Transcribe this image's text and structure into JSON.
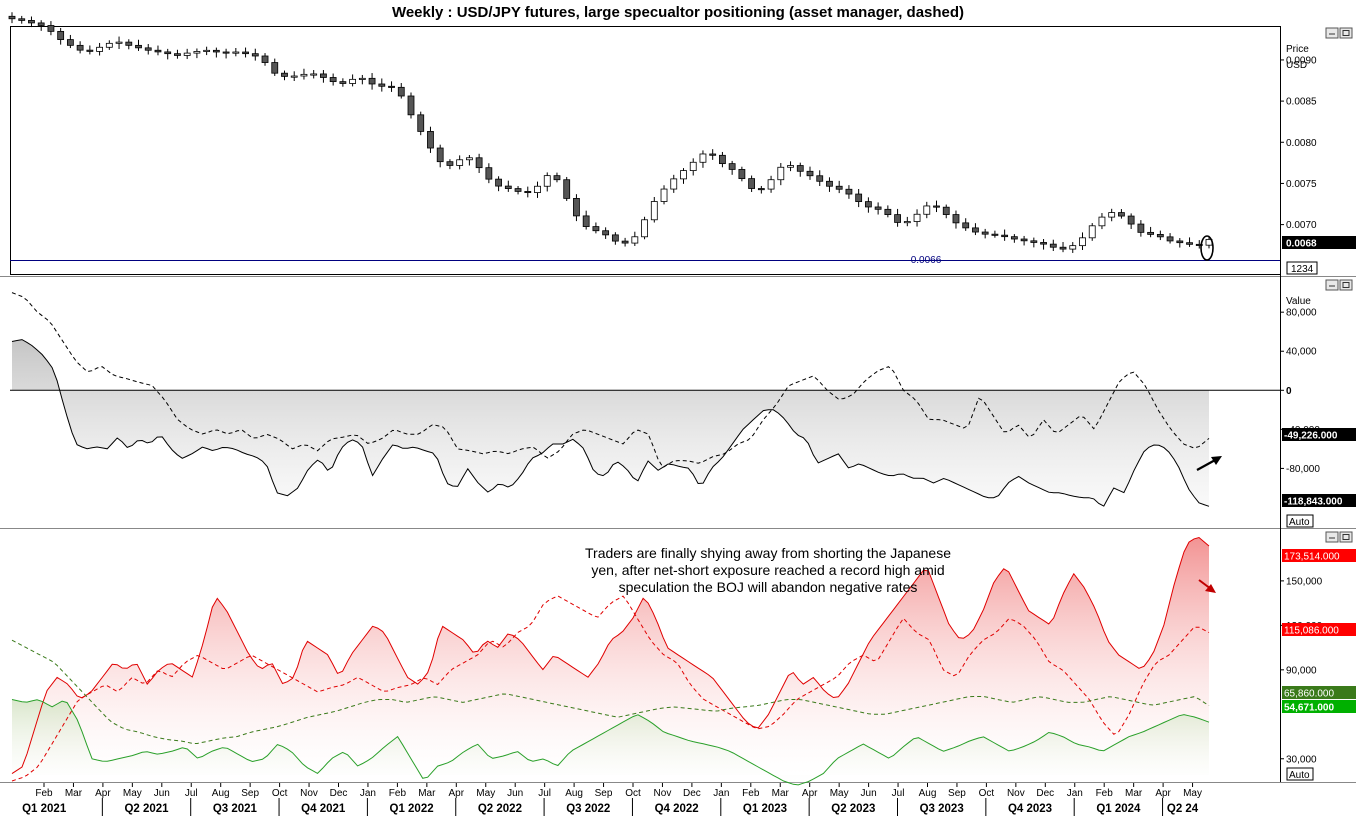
{
  "title": "Weekly : USD/JPY futures, large specualtor positioning (asset manager, dashed)",
  "panes": {
    "price": {
      "axis_title_1": "Price",
      "axis_title_2": "USD",
      "ticks": [
        "0.0090",
        "0.0085",
        "0.0080",
        "0.0075",
        "0.0070"
      ],
      "last_label": "0.0068",
      "hline_label": "0.0066",
      "sub_label": "1234"
    },
    "net": {
      "axis_title": "Value",
      "ticks": [
        "80,000",
        "40,000",
        "0",
        "-40,000",
        "-80,000"
      ],
      "label_dashed": "-49,226.000",
      "label_solid": "-118,843.000",
      "auto": "Auto"
    },
    "gross": {
      "ticks": [
        "150,000",
        "120,000",
        "90,000",
        "30,000"
      ],
      "label_short_lev": "173,514.000",
      "label_short_am": "115,086.000",
      "label_long_am": "65,860.000",
      "label_long_lev": "54,671.000",
      "auto": "Auto",
      "annotation": [
        "Traders are finally shying away from shorting the Japanese",
        "yen, after net-short exposure reached a record high amid",
        "speculation the BOJ will abandon negative rates"
      ]
    }
  },
  "x_axis": {
    "months": [
      "Feb",
      "Mar",
      "Apr",
      "May",
      "Jun",
      "Jul",
      "Aug",
      "Sep",
      "Oct",
      "Nov",
      "Dec",
      "Jan",
      "Feb",
      "Mar",
      "Apr",
      "May",
      "Jun",
      "Jul",
      "Aug",
      "Sep",
      "Oct",
      "Nov",
      "Dec",
      "Jan",
      "Feb",
      "Mar",
      "Apr",
      "May",
      "Jun",
      "Jul",
      "Aug",
      "Sep",
      "Oct",
      "Nov",
      "Dec",
      "Jan",
      "Feb",
      "Mar",
      "Apr",
      "May"
    ],
    "quarters": [
      "Q1 2021",
      "Q2 2021",
      "Q3 2021",
      "Q4 2021",
      "Q1 2022",
      "Q2 2022",
      "Q3 2022",
      "Q4 2022",
      "Q1 2023",
      "Q2 2023",
      "Q3 2023",
      "Q4 2023",
      "Q1 2024",
      "Q2 24"
    ]
  },
  "colors": {
    "up": "#ffffff",
    "down": "#555555",
    "net_fill": "#d9d9d9",
    "short_fill": "#f4a8a8",
    "long_fill": "#e4ecd8",
    "red_label": "#ff0000",
    "green_label": "#00b000",
    "dark_green_label": "#3a7a1a",
    "hline": "#00007f"
  },
  "chart_data": [
    {
      "type": "candlestick",
      "name": "USD/JPY futures (weekly)",
      "x_range": [
        "2021-01",
        "2024-03"
      ],
      "ylim": [
        0.0064,
        0.0094
      ],
      "close_path": [
        0.0095,
        0.00948,
        0.00945,
        0.00942,
        0.00935,
        0.00925,
        0.00918,
        0.00912,
        0.0091,
        0.00915,
        0.0092,
        0.00922,
        0.00918,
        0.00915,
        0.00912,
        0.0091,
        0.00908,
        0.00905,
        0.00908,
        0.0091,
        0.00912,
        0.0091,
        0.00908,
        0.0091,
        0.00908,
        0.00906,
        0.009,
        0.00885,
        0.0088,
        0.0088,
        0.00882,
        0.00884,
        0.0088,
        0.00875,
        0.0087,
        0.00875,
        0.0088,
        0.00872,
        0.00868,
        0.00868,
        0.00864,
        0.0084,
        0.0082,
        0.008,
        0.0078,
        0.0077,
        0.00775,
        0.00785,
        0.00775,
        0.0076,
        0.00748,
        0.00745,
        0.00742,
        0.00738,
        0.0074,
        0.00755,
        0.00765,
        0.00742,
        0.0072,
        0.007,
        0.00695,
        0.0069,
        0.00685,
        0.00675,
        0.0068,
        0.0069,
        0.0072,
        0.00735,
        0.0075,
        0.0076,
        0.0077,
        0.0078,
        0.0079,
        0.0078,
        0.0077,
        0.00765,
        0.0075,
        0.0074,
        0.00745,
        0.0076,
        0.00775,
        0.0077,
        0.00762,
        0.00758,
        0.0075,
        0.00745,
        0.00742,
        0.00735,
        0.00725,
        0.0072,
        0.00718,
        0.0071,
        0.007,
        0.00705,
        0.00715,
        0.00725,
        0.0072,
        0.0071,
        0.007,
        0.00695,
        0.0069,
        0.00688,
        0.00687,
        0.00685,
        0.00682,
        0.0068,
        0.00678,
        0.00676,
        0.00672,
        0.0067,
        0.00675,
        0.00685,
        0.007,
        0.0071,
        0.00715,
        0.0071,
        0.007,
        0.0069,
        0.00688,
        0.00685,
        0.0068,
        0.00678,
        0.00676,
        0.00675,
        0.00682
      ],
      "hline": 0.0066,
      "last": 0.0068
    },
    {
      "type": "line",
      "name": "Net positioning",
      "ylim": [
        -140000,
        115000
      ],
      "series": [
        {
          "name": "Leveraged funds net",
          "style": "solid",
          "last": -118843,
          "values": [
            50000,
            52000,
            45000,
            35000,
            20000,
            -20000,
            -55000,
            -60000,
            -58000,
            -60000,
            -48000,
            -60000,
            -50000,
            -55000,
            -45000,
            -60000,
            -70000,
            -65000,
            -58000,
            -62000,
            -58000,
            -60000,
            -65000,
            -68000,
            -75000,
            -105000,
            -108000,
            -100000,
            -80000,
            -70000,
            -85000,
            -60000,
            -50000,
            -55000,
            -88000,
            -70000,
            -55000,
            -60000,
            -58000,
            -62000,
            -65000,
            -95000,
            -100000,
            -80000,
            -95000,
            -105000,
            -95000,
            -100000,
            -88000,
            -70000,
            -65000,
            -55000,
            -55000,
            -50000,
            -60000,
            -85000,
            -88000,
            -72000,
            -80000,
            -95000,
            -72000,
            -82000,
            -75000,
            -78000,
            -80000,
            -100000,
            -80000,
            -70000,
            -55000,
            -40000,
            -30000,
            -20000,
            -20000,
            -30000,
            -45000,
            -50000,
            -75000,
            -70000,
            -65000,
            -80000,
            -75000,
            -80000,
            -85000,
            -88000,
            -85000,
            -90000,
            -90000,
            -95000,
            -90000,
            -95000,
            -100000,
            -105000,
            -110000,
            -110000,
            -95000,
            -88000,
            -95000,
            -100000,
            -105000,
            -105000,
            -108000,
            -110000,
            -110000,
            -120000,
            -100000,
            -105000,
            -80000,
            -60000,
            -55000,
            -60000,
            -75000,
            -100000,
            -115000,
            -118843
          ]
        },
        {
          "name": "Asset managers net",
          "style": "dashed",
          "last": -49226,
          "values": [
            100000,
            95000,
            80000,
            70000,
            50000,
            30000,
            18000,
            25000,
            15000,
            12000,
            8000,
            5000,
            -10000,
            -30000,
            -40000,
            -45000,
            -40000,
            -45000,
            -40000,
            -50000,
            -45000,
            -50000,
            -60000,
            -55000,
            -62000,
            -50000,
            -48000,
            -45000,
            -55000,
            -50000,
            -40000,
            -45000,
            -45000,
            -35000,
            -38000,
            -60000,
            -62000,
            -65000,
            -62000,
            -65000,
            -60000,
            -58000,
            -70000,
            -62000,
            -45000,
            -40000,
            -45000,
            -50000,
            -55000,
            -40000,
            -45000,
            -80000,
            -72000,
            -72000,
            -75000,
            -68000,
            -65000,
            -55000,
            -50000,
            -30000,
            -15000,
            5000,
            10000,
            15000,
            0,
            -10000,
            -5000,
            10000,
            20000,
            25000,
            0,
            -10000,
            -30000,
            -30000,
            -35000,
            -40000,
            -5000,
            -25000,
            -45000,
            -35000,
            -50000,
            -30000,
            -45000,
            -35000,
            -25000,
            -40000,
            -15000,
            10000,
            20000,
            5000,
            -20000,
            -40000,
            -55000,
            -60000,
            -49226
          ]
        }
      ]
    },
    {
      "type": "area",
      "name": "Gross positioning",
      "ylim": [
        15000,
        185000
      ],
      "series": [
        {
          "name": "Leveraged funds short",
          "style": "solid",
          "color": "#ff0000",
          "last": 173514,
          "values": [
            20000,
            25000,
            50000,
            75000,
            85000,
            80000,
            70000,
            75000,
            85000,
            95000,
            90000,
            95000,
            80000,
            90000,
            95000,
            90000,
            85000,
            110000,
            140000,
            130000,
            115000,
            100000,
            90000,
            95000,
            80000,
            85000,
            110000,
            105000,
            100000,
            85000,
            100000,
            110000,
            120000,
            115000,
            100000,
            85000,
            80000,
            90000,
            120000,
            115000,
            110000,
            100000,
            110000,
            105000,
            115000,
            110000,
            100000,
            90000,
            100000,
            95000,
            90000,
            85000,
            95000,
            110000,
            115000,
            125000,
            140000,
            125000,
            105000,
            100000,
            95000,
            90000,
            85000,
            75000,
            65000,
            55000,
            50000,
            60000,
            75000,
            90000,
            80000,
            85000,
            75000,
            70000,
            80000,
            95000,
            110000,
            120000,
            130000,
            140000,
            150000,
            160000,
            140000,
            120000,
            110000,
            115000,
            130000,
            150000,
            160000,
            145000,
            130000,
            125000,
            120000,
            140000,
            155000,
            145000,
            130000,
            110000,
            100000,
            95000,
            90000,
            100000,
            120000,
            150000,
            175000,
            180000,
            173514
          ]
        },
        {
          "name": "Asset managers short",
          "style": "dashed",
          "color": "#ff0000",
          "last": 115086,
          "values": [
            15000,
            18000,
            25000,
            40000,
            55000,
            70000,
            75000,
            80000,
            75000,
            85000,
            80000,
            90000,
            85000,
            95000,
            100000,
            95000,
            90000,
            95000,
            100000,
            95000,
            90000,
            85000,
            80000,
            75000,
            78000,
            80000,
            85000,
            80000,
            75000,
            78000,
            80000,
            85000,
            80000,
            90000,
            95000,
            100000,
            110000,
            105000,
            115000,
            120000,
            135000,
            140000,
            135000,
            130000,
            125000,
            135000,
            140000,
            125000,
            110000,
            100000,
            95000,
            80000,
            70000,
            65000,
            60000,
            55000,
            50000,
            52000,
            60000,
            70000,
            75000,
            80000,
            85000,
            95000,
            100000,
            95000,
            110000,
            125000,
            115000,
            110000,
            90000,
            85000,
            100000,
            110000,
            115000,
            125000,
            120000,
            110000,
            95000,
            90000,
            80000,
            70000,
            55000,
            45000,
            60000,
            80000,
            95000,
            100000,
            110000,
            120000,
            115086
          ]
        },
        {
          "name": "Asset managers long",
          "style": "dashed",
          "color": "#3a7a1a",
          "last": 65860,
          "values": [
            110000,
            105000,
            100000,
            95000,
            85000,
            75000,
            65000,
            55000,
            50000,
            48000,
            45000,
            43000,
            42000,
            40000,
            42000,
            44000,
            45000,
            48000,
            50000,
            52000,
            55000,
            58000,
            60000,
            62000,
            65000,
            68000,
            70000,
            70000,
            68000,
            70000,
            72000,
            70000,
            68000,
            70000,
            72000,
            74000,
            72000,
            70000,
            68000,
            66000,
            64000,
            62000,
            60000,
            58000,
            60000,
            62000,
            64000,
            65000,
            64000,
            63000,
            62000,
            64000,
            65000,
            66000,
            68000,
            70000,
            70000,
            68000,
            66000,
            64000,
            62000,
            60000,
            60000,
            62000,
            64000,
            66000,
            68000,
            70000,
            72000,
            72000,
            70000,
            68000,
            70000,
            72000,
            70000,
            68000,
            68000,
            70000,
            72000,
            70000,
            68000,
            66000,
            68000,
            70000,
            72000,
            65860
          ]
        },
        {
          "name": "Leveraged funds long",
          "style": "solid",
          "color": "#00b000",
          "last": 54671,
          "values": [
            70000,
            68000,
            70000,
            65000,
            70000,
            55000,
            30000,
            28000,
            30000,
            32000,
            35000,
            33000,
            35000,
            38000,
            30000,
            35000,
            38000,
            33000,
            28000,
            30000,
            40000,
            35000,
            25000,
            20000,
            30000,
            35000,
            25000,
            30000,
            38000,
            45000,
            30000,
            15000,
            25000,
            28000,
            35000,
            40000,
            30000,
            32000,
            35000,
            28000,
            30000,
            25000,
            35000,
            40000,
            45000,
            50000,
            55000,
            60000,
            55000,
            48000,
            45000,
            42000,
            40000,
            38000,
            35000,
            30000,
            25000,
            20000,
            15000,
            12000,
            15000,
            20000,
            30000,
            35000,
            40000,
            35000,
            30000,
            38000,
            45000,
            40000,
            35000,
            38000,
            42000,
            45000,
            40000,
            35000,
            38000,
            42000,
            48000,
            45000,
            40000,
            38000,
            35000,
            40000,
            45000,
            48000,
            52000,
            56000,
            60000,
            58000,
            54671
          ]
        }
      ]
    }
  ]
}
